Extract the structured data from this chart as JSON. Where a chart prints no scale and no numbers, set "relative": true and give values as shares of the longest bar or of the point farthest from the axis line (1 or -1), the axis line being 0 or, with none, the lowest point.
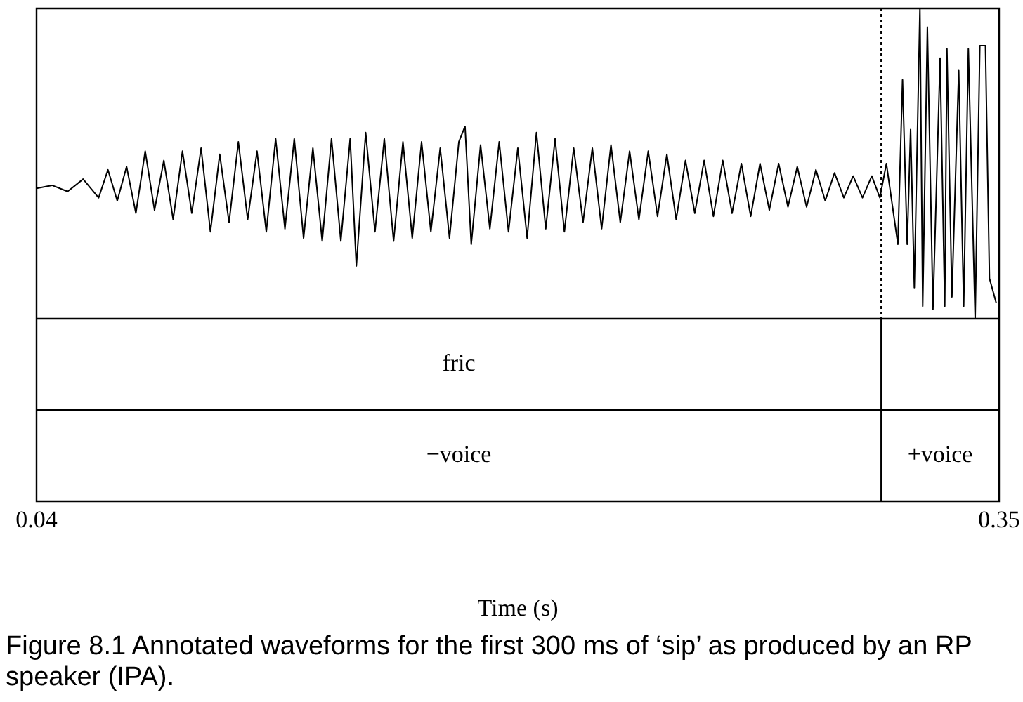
{
  "chart_data": {
    "type": "line",
    "relative": true,
    "xlabel": "Time (s)",
    "xlim": [
      0.04,
      0.35
    ],
    "xticks": [
      0.04,
      0.35
    ],
    "x": [
      0.04,
      0.045,
      0.05,
      0.055,
      0.06,
      0.063,
      0.066,
      0.069,
      0.072,
      0.075,
      0.078,
      0.081,
      0.084,
      0.087,
      0.09,
      0.093,
      0.096,
      0.099,
      0.102,
      0.105,
      0.108,
      0.111,
      0.114,
      0.117,
      0.12,
      0.123,
      0.126,
      0.129,
      0.132,
      0.135,
      0.138,
      0.141,
      0.143,
      0.146,
      0.149,
      0.152,
      0.155,
      0.158,
      0.161,
      0.164,
      0.167,
      0.17,
      0.173,
      0.176,
      0.178,
      0.18,
      0.183,
      0.186,
      0.189,
      0.192,
      0.195,
      0.198,
      0.201,
      0.204,
      0.207,
      0.21,
      0.213,
      0.216,
      0.219,
      0.222,
      0.225,
      0.228,
      0.231,
      0.234,
      0.237,
      0.24,
      0.243,
      0.246,
      0.249,
      0.252,
      0.255,
      0.258,
      0.261,
      0.264,
      0.267,
      0.27,
      0.273,
      0.276,
      0.279,
      0.282,
      0.285,
      0.288,
      0.291,
      0.294,
      0.297,
      0.3,
      0.303,
      0.306,
      0.309,
      0.3116,
      0.3137,
      0.3174,
      0.3189,
      0.3204,
      0.3215,
      0.3227,
      0.3245,
      0.3254,
      0.3269,
      0.3287,
      0.331,
      0.3325,
      0.3332,
      0.3348,
      0.337,
      0.3386,
      0.3401,
      0.3423,
      0.3438,
      0.3456,
      0.3469,
      0.3491
    ],
    "series": [
      {
        "color": "#000000",
        "values": [
          0.42,
          0.43,
          0.41,
          0.45,
          0.39,
          0.48,
          0.38,
          0.49,
          0.34,
          0.54,
          0.35,
          0.51,
          0.32,
          0.54,
          0.34,
          0.55,
          0.28,
          0.53,
          0.31,
          0.57,
          0.32,
          0.54,
          0.28,
          0.58,
          0.29,
          0.58,
          0.26,
          0.55,
          0.25,
          0.58,
          0.25,
          0.58,
          0.17,
          0.6,
          0.28,
          0.58,
          0.25,
          0.57,
          0.26,
          0.57,
          0.28,
          0.55,
          0.26,
          0.57,
          0.62,
          0.24,
          0.56,
          0.29,
          0.57,
          0.28,
          0.55,
          0.26,
          0.6,
          0.29,
          0.58,
          0.28,
          0.55,
          0.31,
          0.55,
          0.29,
          0.56,
          0.31,
          0.54,
          0.32,
          0.54,
          0.33,
          0.53,
          0.32,
          0.51,
          0.34,
          0.51,
          0.33,
          0.51,
          0.34,
          0.5,
          0.33,
          0.5,
          0.35,
          0.5,
          0.36,
          0.49,
          0.36,
          0.48,
          0.38,
          0.47,
          0.39,
          0.46,
          0.39,
          0.46,
          0.39,
          0.5,
          0.24,
          0.77,
          0.24,
          0.61,
          0.1,
          1.0,
          0.04,
          0.94,
          0.03,
          0.84,
          0.04,
          0.87,
          0.07,
          0.8,
          0.04,
          0.87,
          0,
          0.88,
          0.88,
          0.13,
          0.05
        ]
      }
    ],
    "marker": "none",
    "line_style": "solid",
    "legend": false,
    "ref_lines": [
      {
        "axis": "x",
        "value": 0.312,
        "line_style": "dotted",
        "color": "#000000"
      }
    ],
    "annotations": [
      "fric",
      "−voice",
      "+voice",
      "Figure 8.1  Annotated waveforms for the first 300 ms of ‘sip’ as produced by an RP speaker (IPA)."
    ]
  }
}
